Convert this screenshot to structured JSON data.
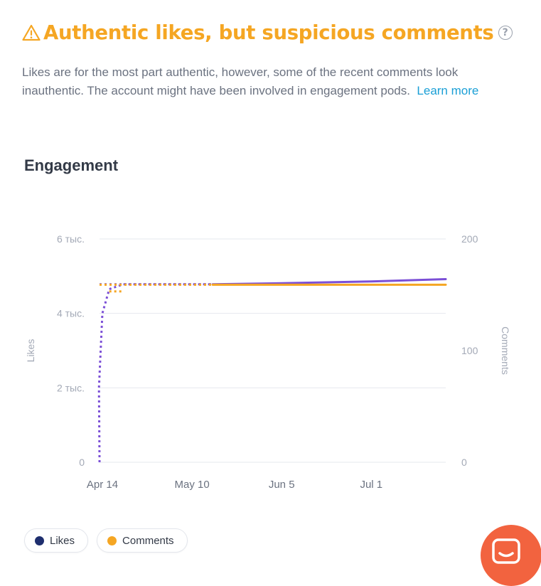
{
  "alert": {
    "title": "Authentic likes, but suspicious comments",
    "help_label": "?",
    "color": "#f5a623",
    "description": "Likes are for the most part authentic, however, some of the recent comments look inauthentic. The account might have been involved in engagement pods.",
    "learn_more": "Learn more",
    "link_color": "#1a9fd6"
  },
  "section": {
    "title": "Engagement"
  },
  "chart_data": {
    "type": "line",
    "title": "Engagement",
    "x_ticks": [
      "Apr 14",
      "May 10",
      "Jun 5",
      "Jul 1"
    ],
    "left_axis": {
      "label": "Likes",
      "ticks": [
        "0",
        "2 тыс.",
        "4 тыс.",
        "6 тыс."
      ],
      "range": [
        0,
        6000
      ]
    },
    "right_axis": {
      "label": "Comments",
      "ticks": [
        "0",
        "100",
        "200"
      ],
      "range": [
        0,
        200
      ]
    },
    "grid": true,
    "series": [
      {
        "name": "Likes",
        "axis": "left",
        "color": "#7b4fd6",
        "solid": [
          [
            "May 16",
            4780
          ],
          [
            "Jun 5",
            4810
          ],
          [
            "Jul 1",
            4860
          ],
          [
            "Jul 23",
            4920
          ]
        ],
        "dotted": [
          [
            "Apr 13",
            0
          ],
          [
            "Apr 13",
            2000
          ],
          [
            "Apr 14",
            4000
          ],
          [
            "Apr 16",
            4650
          ],
          [
            "Apr 20",
            4780
          ],
          [
            "May 16",
            4780
          ]
        ],
        "dotted_start_level": 4780
      },
      {
        "name": "Comments",
        "axis": "right",
        "color": "#f5a623",
        "solid": [
          [
            "May 16",
            159
          ],
          [
            "Jul 23",
            159
          ]
        ],
        "dotted": [
          [
            "Apr 13",
            159
          ],
          [
            "May 16",
            159
          ]
        ],
        "dotted_offset": [
          [
            "Apr 16",
            153
          ],
          [
            "Apr 20",
            153
          ]
        ]
      }
    ],
    "legend": "bottom-left"
  },
  "legend": {
    "likes": "Likes",
    "comments": "Comments",
    "likes_color": "#1e2e6e",
    "comments_color": "#f5a623"
  },
  "chat": {
    "icon": "chat-icon",
    "color": "#f2633f"
  }
}
